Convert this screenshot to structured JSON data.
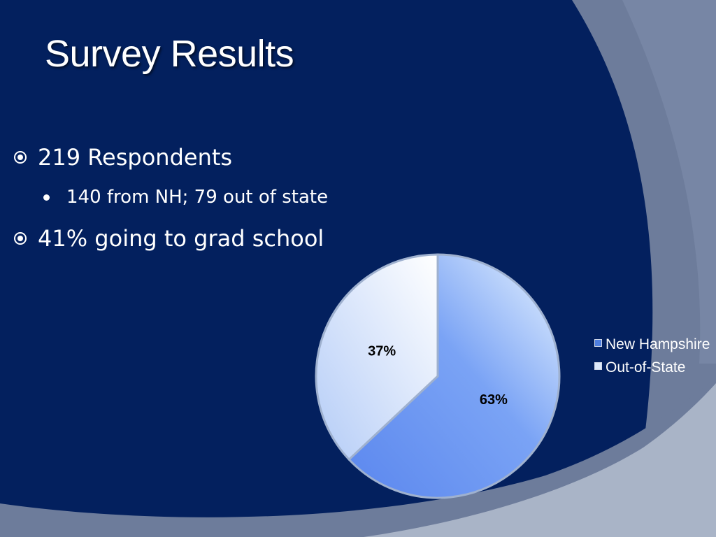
{
  "slide": {
    "title": "Survey Results",
    "bullets": [
      "219 Respondents",
      "140 from NH; 79 out of state",
      "41% going to grad school"
    ]
  },
  "colors": {
    "background_dark": "#03205e",
    "arc_light": "#a9b4c7",
    "arc_mid": "#6d7c9b",
    "nh_slice": "#5b87ee",
    "oos_slice": "#cfe2ff"
  },
  "chart_data": {
    "type": "pie",
    "categories": [
      "New Hampshire",
      "Out-of-State"
    ],
    "values": [
      63,
      37
    ],
    "data_labels": [
      "63%",
      "37%"
    ],
    "legend_position": "right",
    "legend": [
      {
        "label": "New Hampshire",
        "color": "#4f7fe0"
      },
      {
        "label": "Out-of-State",
        "color": "#dde9fb"
      }
    ]
  }
}
